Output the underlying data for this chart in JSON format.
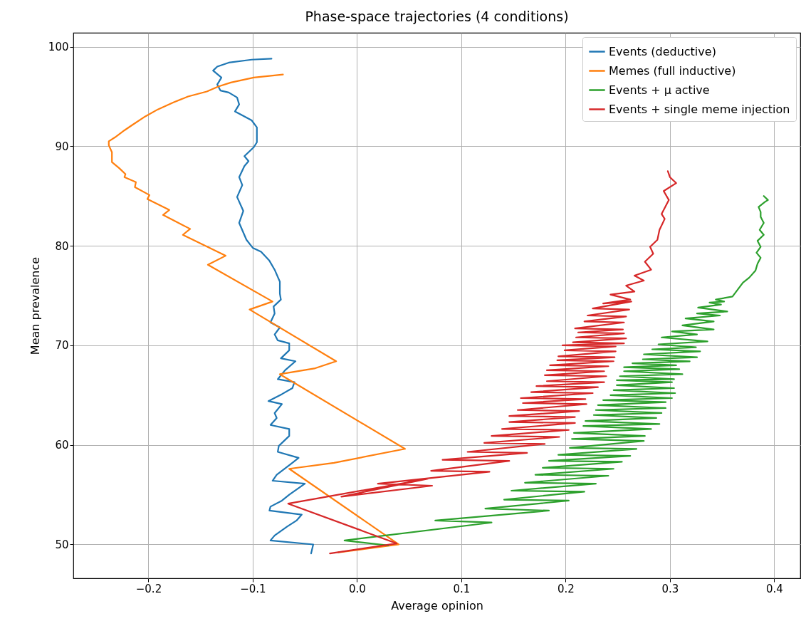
{
  "chart_data": {
    "type": "line",
    "title": "Phase-space trajectories (4 conditions)",
    "xlabel": "Average opinion",
    "ylabel": "Mean prevalence",
    "xlim": [
      -0.272,
      0.425
    ],
    "ylim": [
      46.6,
      101.4
    ],
    "xticks": [
      {
        "value": -0.2,
        "label": "−0.2"
      },
      {
        "value": -0.1,
        "label": "−0.1"
      },
      {
        "value": 0,
        "label": "0.0"
      },
      0.1,
      0.2,
      0.3,
      0.4
    ],
    "yticks": [
      50,
      60,
      70,
      80,
      90,
      100
    ],
    "grid": true,
    "legend": "top right",
    "series": [
      {
        "name": "Events (deductive)",
        "color": "#1f77b4",
        "x": [
          -0.044,
          -0.042,
          -0.083,
          -0.079,
          -0.067,
          -0.058,
          -0.053,
          -0.084,
          -0.083,
          -0.072,
          -0.065,
          -0.05,
          -0.081,
          -0.077,
          -0.062,
          -0.056,
          -0.076,
          -0.075,
          -0.065,
          -0.065,
          -0.083,
          -0.077,
          -0.079,
          -0.072,
          -0.085,
          -0.072,
          -0.062,
          -0.06,
          -0.076,
          -0.069,
          -0.059,
          -0.073,
          -0.065,
          -0.065,
          -0.076,
          -0.079,
          -0.074,
          -0.083,
          -0.079,
          -0.08,
          -0.073,
          -0.074,
          -0.074,
          -0.079,
          -0.084,
          -0.092,
          -0.1,
          -0.106,
          -0.113,
          -0.109,
          -0.115,
          -0.11,
          -0.113,
          -0.108,
          -0.104,
          -0.108,
          -0.099,
          -0.096,
          -0.096,
          -0.101,
          -0.108,
          -0.117,
          -0.113,
          -0.115,
          -0.123,
          -0.131,
          -0.134,
          -0.13,
          -0.138,
          -0.134,
          -0.123,
          -0.101,
          -0.082
        ],
        "values": [
          49.1,
          50.0,
          50.4,
          50.9,
          51.8,
          52.4,
          53.0,
          53.4,
          53.8,
          54.4,
          55.0,
          56.1,
          56.4,
          57.0,
          58.2,
          58.7,
          59.3,
          59.9,
          60.9,
          61.6,
          62.0,
          62.7,
          63.2,
          64.1,
          64.4,
          65.1,
          65.7,
          66.3,
          66.6,
          67.5,
          68.4,
          68.7,
          69.5,
          70.2,
          70.5,
          71.1,
          71.8,
          72.3,
          73.2,
          73.9,
          74.6,
          75.2,
          76.4,
          77.6,
          78.5,
          79.4,
          79.8,
          80.6,
          82.3,
          83.5,
          84.9,
          86.1,
          86.9,
          88.0,
          88.5,
          89.0,
          89.9,
          90.4,
          91.9,
          92.6,
          93.0,
          93.5,
          94.2,
          94.9,
          95.4,
          95.6,
          96.2,
          96.9,
          97.6,
          98.0,
          98.4,
          98.7,
          98.8
        ]
      },
      {
        "name": "Memes (full inductive)",
        "color": "#ff7f0e",
        "x": [
          -0.018,
          0.04,
          -0.065,
          -0.022,
          0.046,
          -0.074,
          -0.04,
          -0.02,
          -0.103,
          -0.081,
          -0.143,
          -0.126,
          -0.167,
          -0.16,
          -0.186,
          -0.18,
          -0.201,
          -0.199,
          -0.213,
          -0.212,
          -0.223,
          -0.222,
          -0.228,
          -0.235,
          -0.235,
          -0.238,
          -0.238,
          -0.232,
          -0.223,
          -0.216,
          -0.203,
          -0.191,
          -0.176,
          -0.162,
          -0.144,
          -0.133,
          -0.121,
          -0.099,
          -0.071
        ],
        "values": [
          49.2,
          50.0,
          57.6,
          58.2,
          59.6,
          67.1,
          67.7,
          68.4,
          73.6,
          74.4,
          78.1,
          79.0,
          81.1,
          81.7,
          83.1,
          83.6,
          84.7,
          85.1,
          85.9,
          86.4,
          86.9,
          87.2,
          87.8,
          88.4,
          89.4,
          90.1,
          90.5,
          90.9,
          91.6,
          92.1,
          93.0,
          93.7,
          94.4,
          95.0,
          95.5,
          96.0,
          96.4,
          96.9,
          97.2
        ]
      },
      {
        "name": "Events + μ active",
        "color": "#2ca02c",
        "x": [
          0.03,
          -0.012,
          0.129,
          0.075,
          0.184,
          0.123,
          0.203,
          0.141,
          0.218,
          0.148,
          0.229,
          0.161,
          0.241,
          0.171,
          0.246,
          0.178,
          0.254,
          0.184,
          0.262,
          0.193,
          0.268,
          0.204,
          0.275,
          0.206,
          0.276,
          0.208,
          0.282,
          0.217,
          0.29,
          0.219,
          0.287,
          0.227,
          0.292,
          0.229,
          0.296,
          0.231,
          0.296,
          0.236,
          0.302,
          0.243,
          0.305,
          0.246,
          0.304,
          0.249,
          0.302,
          0.249,
          0.304,
          0.252,
          0.312,
          0.256,
          0.309,
          0.256,
          0.306,
          0.264,
          0.319,
          0.274,
          0.326,
          0.275,
          0.329,
          0.283,
          0.325,
          0.289,
          0.336,
          0.292,
          0.326,
          0.302,
          0.342,
          0.312,
          0.342,
          0.315,
          0.348,
          0.326,
          0.355,
          0.327,
          0.349,
          0.338,
          0.352,
          0.344,
          0.36,
          0.365,
          0.37,
          0.376,
          0.382,
          0.384,
          0.387,
          0.383,
          0.387,
          0.384,
          0.39,
          0.386,
          0.39,
          0.387,
          0.387,
          0.385,
          0.391,
          0.394,
          0.39
        ],
        "values": [
          49.9,
          50.4,
          52.2,
          52.4,
          53.4,
          53.6,
          54.4,
          54.5,
          55.3,
          55.4,
          56.1,
          56.2,
          56.9,
          57.0,
          57.6,
          57.7,
          58.3,
          58.4,
          58.9,
          59.0,
          59.6,
          59.7,
          60.4,
          60.6,
          60.9,
          61.2,
          61.6,
          61.9,
          62.1,
          62.4,
          62.7,
          63.0,
          63.2,
          63.5,
          63.7,
          64.0,
          64.3,
          64.5,
          64.7,
          65.0,
          65.2,
          65.5,
          65.7,
          66.0,
          66.3,
          66.5,
          66.6,
          66.9,
          67.1,
          67.4,
          67.6,
          67.8,
          68.0,
          68.2,
          68.4,
          68.6,
          68.8,
          69.1,
          69.4,
          69.6,
          69.8,
          70.1,
          70.4,
          70.8,
          71.1,
          71.4,
          71.6,
          72.0,
          72.4,
          72.7,
          73.0,
          73.2,
          73.4,
          73.8,
          74.1,
          74.3,
          74.4,
          74.6,
          74.9,
          75.6,
          76.3,
          76.8,
          77.5,
          78.2,
          78.8,
          79.3,
          79.9,
          80.5,
          81.1,
          81.6,
          82.3,
          82.9,
          83.4,
          83.9,
          84.4,
          84.6,
          85.0
        ]
      },
      {
        "name": "Events + single meme injection",
        "color": "#d62728",
        "x": [
          -0.026,
          0.038,
          -0.066,
          0.068,
          -0.015,
          0.072,
          0.02,
          0.127,
          0.071,
          0.146,
          0.082,
          0.163,
          0.106,
          0.18,
          0.122,
          0.194,
          0.129,
          0.203,
          0.139,
          0.209,
          0.146,
          0.209,
          0.146,
          0.213,
          0.154,
          0.22,
          0.159,
          0.219,
          0.157,
          0.226,
          0.167,
          0.231,
          0.172,
          0.237,
          0.182,
          0.239,
          0.18,
          0.237,
          0.182,
          0.241,
          0.185,
          0.246,
          0.192,
          0.247,
          0.193,
          0.248,
          0.199,
          0.248,
          0.197,
          0.256,
          0.207,
          0.258,
          0.21,
          0.256,
          0.212,
          0.255,
          0.209,
          0.256,
          0.218,
          0.258,
          0.221,
          0.261,
          0.226,
          0.263,
          0.236,
          0.262,
          0.243,
          0.266,
          0.258,
          0.275,
          0.266,
          0.282,
          0.276,
          0.284,
          0.281,
          0.288,
          0.29,
          0.295,
          0.292,
          0.299,
          0.294,
          0.306,
          0.3,
          0.298
        ],
        "values": [
          49.1,
          50.1,
          54.1,
          56.6,
          54.8,
          55.9,
          56.1,
          57.3,
          57.4,
          58.4,
          58.5,
          59.2,
          59.3,
          60.1,
          60.2,
          60.8,
          60.9,
          61.5,
          61.6,
          62.2,
          62.3,
          62.8,
          62.9,
          63.4,
          63.5,
          64.1,
          64.2,
          64.6,
          64.7,
          65.2,
          65.3,
          65.8,
          65.9,
          66.3,
          66.4,
          66.9,
          67.0,
          67.4,
          67.5,
          67.9,
          68.0,
          68.4,
          68.5,
          68.8,
          68.9,
          69.4,
          69.5,
          69.9,
          70.0,
          70.2,
          70.3,
          70.7,
          70.8,
          71.2,
          71.3,
          71.6,
          71.7,
          72.3,
          72.4,
          72.9,
          73.0,
          73.6,
          73.7,
          74.4,
          74.2,
          74.6,
          75.1,
          75.4,
          76.0,
          76.5,
          77.0,
          77.6,
          78.4,
          79.2,
          79.9,
          80.6,
          81.6,
          82.7,
          83.2,
          84.6,
          85.5,
          86.3,
          86.9,
          87.5
        ]
      }
    ]
  }
}
